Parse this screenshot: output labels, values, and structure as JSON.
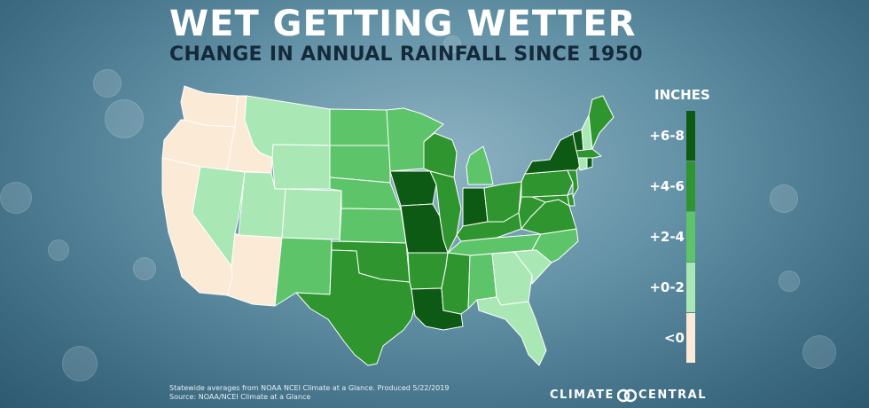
{
  "title": "WET GETTING WETTER",
  "subtitle": "CHANGE IN ANNUAL RAINFALL SINCE 1950",
  "legend": {
    "title": "INCHES",
    "items": [
      {
        "label": "+6-8",
        "color": "#0d5a14"
      },
      {
        "label": "+4-6",
        "color": "#2f952f"
      },
      {
        "label": "+2-4",
        "color": "#5ec46a"
      },
      {
        "label": "+0-2",
        "color": "#a9e7b4"
      },
      {
        "label": "<0",
        "color": "#fbead6"
      }
    ]
  },
  "states": {
    "WA": "<0",
    "OR": "<0",
    "CA": "<0",
    "ID": "<0",
    "AZ": "<0",
    "NV": "+0-2",
    "MT": "+0-2",
    "WY": "+0-2",
    "UT": "+0-2",
    "CO": "+0-2",
    "GA": "+0-2",
    "SC": "+0-2",
    "FL": "+0-2",
    "NH": "+0-2",
    "CT": "+0-2",
    "NM": "+2-4",
    "ND": "+2-4",
    "SD": "+2-4",
    "NE": "+2-4",
    "KS": "+2-4",
    "MN": "+2-4",
    "MI": "+2-4",
    "AL": "+2-4",
    "NC": "+2-4",
    "TN": "+2-4",
    "TX": "+4-6",
    "OK": "+4-6",
    "AR": "+4-6",
    "MS": "+4-6",
    "WI": "+4-6",
    "IL": "+4-6",
    "KY": "+4-6",
    "OH": "+4-6",
    "WV": "+4-6",
    "VA": "+4-6",
    "PA": "+4-6",
    "MD": "+4-6",
    "DE": "+4-6",
    "NJ": "+4-6",
    "ME": "+4-6",
    "MA": "+4-6",
    "IA": "+6-8",
    "MO": "+6-8",
    "LA": "+6-8",
    "IN": "+6-8",
    "NY": "+6-8",
    "VT": "+6-8",
    "RI": "+6-8"
  },
  "footnote": {
    "line1": "Statewide averages from NOAA NCEI Climate at a Glance. Produced 5/22/2019",
    "line2": "Source: NOAA/NCEI Climate at a Glance"
  },
  "logo": {
    "left": "CLIMATE",
    "right": "CENTRAL",
    "icon": "infinity-rings-icon"
  }
}
